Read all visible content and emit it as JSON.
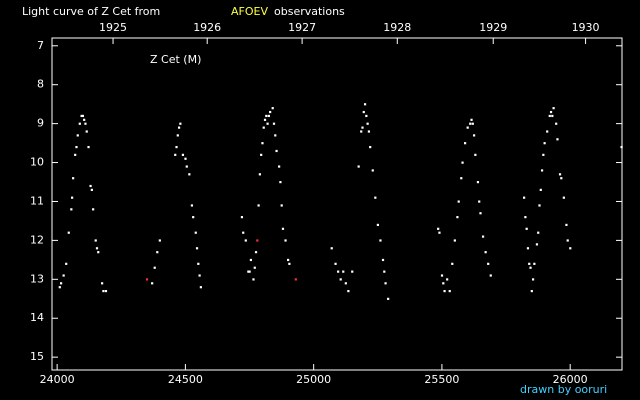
{
  "chart_data": {
    "type": "scatter",
    "title": "Light curve of Z Cet from",
    "title_source": "AFOEV",
    "title_suffix": "observations",
    "annotation": "Z Cet (M)",
    "credit": "drawn by ooruri",
    "xlim": [
      23980,
      26202
    ],
    "ylim": [
      6.8,
      15.33
    ],
    "y_inverted": true,
    "xticks": [
      24000,
      24500,
      25000,
      25500,
      26000
    ],
    "yticks": [
      7,
      8,
      9,
      10,
      11,
      12,
      13,
      14,
      15
    ],
    "x2ticks": [
      {
        "value": 24218,
        "label": "1925"
      },
      {
        "value": 24585,
        "label": "1926"
      },
      {
        "value": 24955,
        "label": "1927"
      },
      {
        "value": 25326,
        "label": "1928"
      },
      {
        "value": 25700,
        "label": "1929"
      },
      {
        "value": 26060,
        "label": "1930"
      }
    ],
    "series": [
      {
        "color": "#ffffff",
        "x": [
          24010,
          24015,
          24025,
          24035,
          24045,
          24055,
          24058,
          24062,
          24070,
          24075,
          24080,
          24088,
          24095,
          24100,
          24105,
          24110,
          24115,
          24122,
          24130,
          24135,
          24140,
          24150,
          24155,
          24160,
          24175,
          24180,
          24190,
          24370,
          24380,
          24390,
          24400,
          24460,
          24465,
          24470,
          24475,
          24480,
          24490,
          24500,
          24505,
          24515,
          24525,
          24530,
          24540,
          24545,
          24550,
          24555,
          24560,
          24720,
          24725,
          24735,
          24745,
          24750,
          24755,
          24765,
          24770,
          24775,
          24785,
          24790,
          24795,
          24800,
          24805,
          24810,
          24815,
          24820,
          24825,
          24830,
          24840,
          24845,
          24850,
          24855,
          24865,
          24870,
          24875,
          24880,
          24890,
          24900,
          24905,
          25070,
          25085,
          25095,
          25105,
          25115,
          25125,
          25135,
          25150,
          25175,
          25185,
          25190,
          25195,
          25200,
          25205,
          25210,
          25215,
          25220,
          25230,
          25240,
          25250,
          25260,
          25270,
          25275,
          25280,
          25290,
          25485,
          25490,
          25500,
          25505,
          25510,
          25520,
          25530,
          25540,
          25550,
          25560,
          25565,
          25575,
          25580,
          25590,
          25600,
          25610,
          25615,
          25620,
          25625,
          25630,
          25640,
          25645,
          25650,
          25660,
          25670,
          25680,
          25690,
          25820,
          25825,
          25830,
          25835,
          25840,
          25845,
          25850,
          25855,
          25860,
          25870,
          25875,
          25880,
          25885,
          25890,
          25895,
          25900,
          25910,
          25920,
          25925,
          25930,
          25935,
          25945,
          25950,
          25960,
          25965,
          25975,
          25985,
          25990,
          26000,
          26200
        ],
        "values": [
          13.2,
          13.1,
          12.9,
          12.6,
          11.8,
          11.2,
          10.9,
          10.4,
          9.8,
          9.6,
          9.3,
          9.0,
          8.8,
          8.8,
          8.9,
          9.0,
          9.2,
          9.6,
          10.6,
          10.7,
          11.2,
          12.0,
          12.2,
          12.3,
          13.1,
          13.3,
          13.3,
          13.1,
          12.7,
          12.3,
          12.0,
          9.8,
          9.6,
          9.3,
          9.1,
          9.0,
          9.8,
          9.9,
          10.1,
          10.3,
          11.1,
          11.4,
          11.8,
          12.2,
          12.6,
          12.9,
          13.2,
          11.4,
          11.8,
          12.0,
          12.8,
          12.8,
          12.5,
          13.0,
          12.7,
          12.3,
          11.1,
          10.3,
          9.8,
          9.5,
          9.1,
          8.9,
          8.8,
          9.0,
          8.8,
          8.7,
          8.6,
          9.0,
          9.3,
          9.7,
          10.1,
          10.5,
          11.1,
          11.7,
          12.0,
          12.5,
          12.6,
          12.2,
          12.6,
          12.8,
          13.0,
          12.8,
          13.1,
          13.3,
          12.8,
          10.1,
          9.2,
          9.1,
          8.7,
          8.5,
          8.8,
          9.0,
          9.2,
          9.6,
          10.2,
          10.9,
          11.6,
          12.0,
          12.5,
          12.8,
          13.1,
          13.5,
          11.7,
          11.8,
          12.9,
          13.1,
          13.3,
          13.0,
          13.3,
          12.6,
          12.0,
          11.4,
          11.0,
          10.4,
          10.0,
          9.5,
          9.1,
          9.0,
          8.9,
          9.0,
          9.3,
          9.8,
          10.5,
          11.0,
          11.3,
          11.9,
          12.3,
          12.6,
          12.9,
          10.9,
          11.4,
          11.7,
          12.2,
          12.6,
          12.7,
          13.3,
          13.0,
          12.6,
          12.1,
          11.8,
          11.1,
          10.7,
          10.2,
          9.8,
          9.5,
          9.2,
          8.8,
          8.7,
          8.8,
          8.6,
          9.0,
          9.4,
          10.3,
          10.4,
          10.9,
          11.6,
          12.0,
          12.2,
          9.6
        ]
      },
      {
        "color": "#ff3030",
        "x": [
          24350,
          24780,
          24930
        ],
        "values": [
          13.0,
          12.0,
          13.0
        ]
      }
    ]
  }
}
